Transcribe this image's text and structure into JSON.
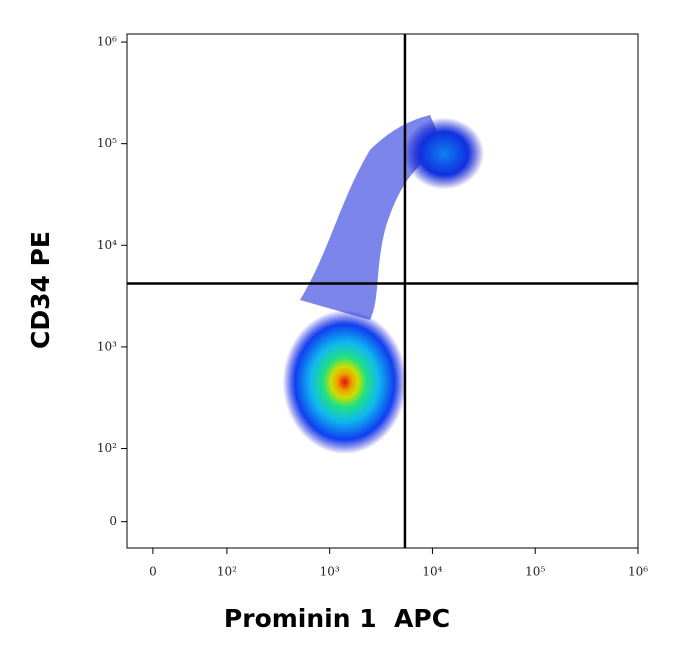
{
  "chart_data": {
    "type": "density",
    "x_label": "Prominin 1  APC",
    "y_label": "CD34 PE",
    "xscale": "biexponential",
    "yscale": "biexponential",
    "linear_decades": 0.72,
    "xlim": [
      -35,
      1000000
    ],
    "ylim": [
      -36,
      1200000
    ],
    "xticks": [
      0,
      {
        "value": 100,
        "label": "10²"
      },
      {
        "value": 1000,
        "label": "10³"
      },
      {
        "value": 10000,
        "label": "10⁴"
      },
      {
        "value": 100000,
        "label": "10⁵"
      },
      {
        "value": 1000000,
        "label": "10⁶"
      }
    ],
    "yticks": [
      0,
      {
        "value": 100,
        "label": "10²"
      },
      {
        "value": 1000,
        "label": "10³"
      },
      {
        "value": 10000,
        "label": "10⁴"
      },
      {
        "value": 100000,
        "label": "10⁵"
      },
      {
        "value": 1000000,
        "label": "10⁶"
      }
    ],
    "gates": {
      "x": 5400,
      "y": 4200
    },
    "populations": [
      {
        "x": 1400,
        "y": 450
      },
      {
        "x": 13000,
        "y": 80000
      }
    ]
  }
}
